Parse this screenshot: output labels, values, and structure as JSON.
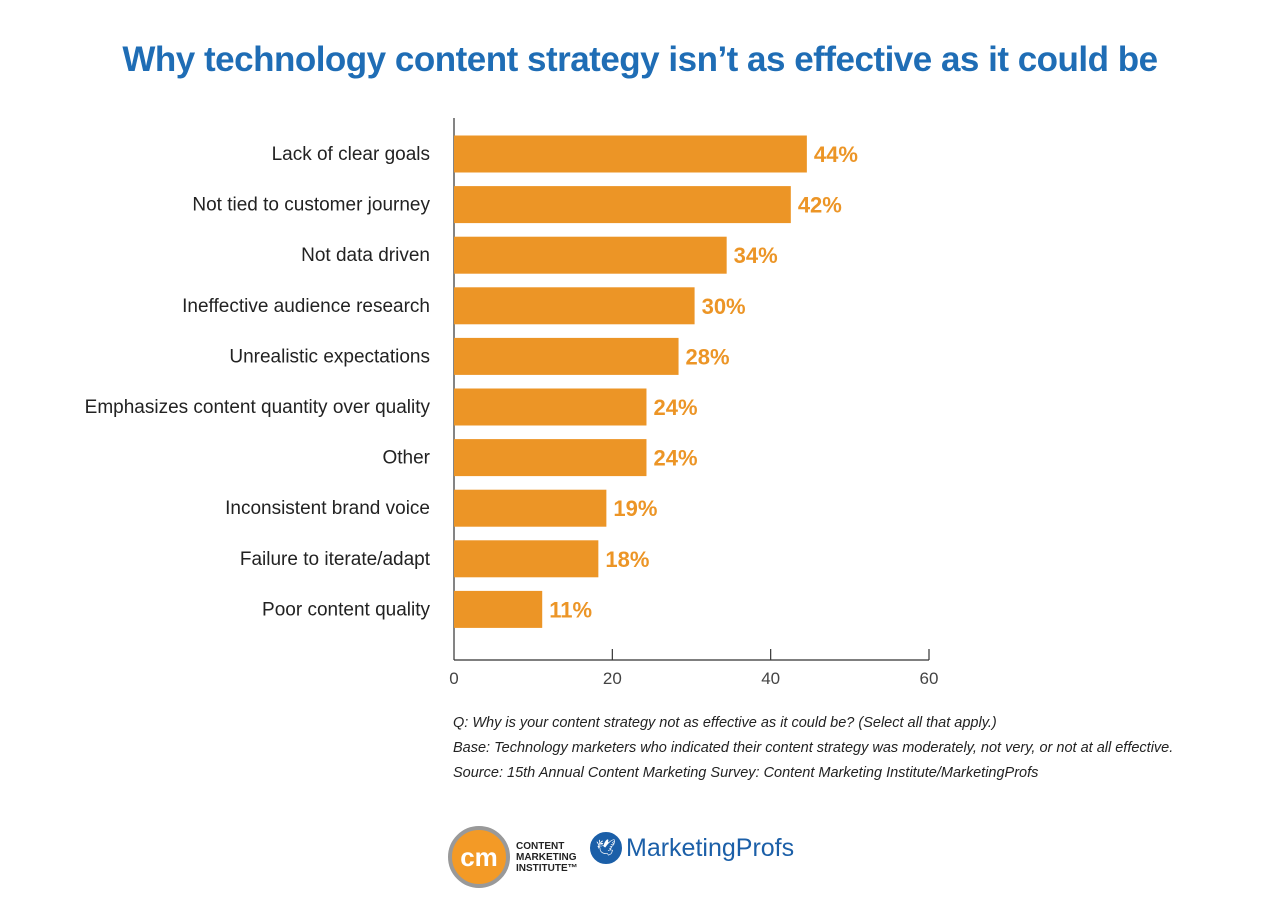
{
  "chart_data": {
    "type": "bar",
    "orientation": "horizontal",
    "title": "Why technology content strategy isn’t as effective as it could be",
    "categories": [
      "Lack of clear goals",
      "Not tied to customer journey",
      "Not data driven",
      "Ineffective audience research",
      "Unrealistic expectations",
      "Emphasizes content quantity over quality",
      "Other",
      "Inconsistent brand voice",
      "Failure to iterate/adapt",
      "Poor content quality"
    ],
    "values": [
      44,
      42,
      34,
      30,
      28,
      24,
      24,
      19,
      18,
      11
    ],
    "data_labels": [
      "44%",
      "42%",
      "34%",
      "30%",
      "28%",
      "24%",
      "24%",
      "19%",
      "18%",
      "11%"
    ],
    "xlim": [
      0,
      60
    ],
    "xticks": [
      "0",
      "20",
      "40",
      "60"
    ],
    "grid": false,
    "bar_color": "#ec9526",
    "title_color": "#1f6db5"
  },
  "notes": [
    "Q: Why is your content strategy not as effective as it could be? (Select all that apply.)",
    "Base: Technology marketers who indicated their content strategy was moderately, not very, or not at all effective.",
    "Source: 15th Annual Content Marketing Survey: Content Marketing Institute/MarketingProfs"
  ],
  "logos": {
    "cmi": {
      "mark": "cm",
      "text": [
        "CONTENT",
        "MARKETING",
        "INSTITUTE™"
      ]
    },
    "marketingprofs": {
      "text": "MarketingProfs"
    }
  }
}
